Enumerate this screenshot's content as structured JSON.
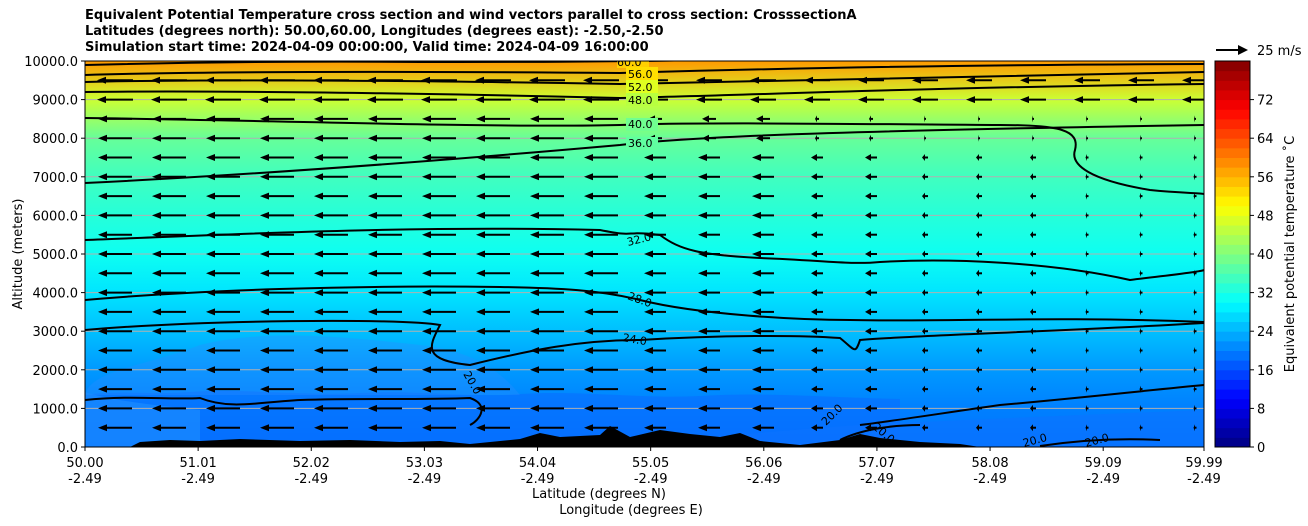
{
  "titles": {
    "line1": "Equivalent Potential Temperature cross section and wind vectors parallel to cross section: CrosssectionA",
    "line2": "Latitudes (degrees north): 50.00,60.00, Longitudes (degrees east): -2.50,-2.50",
    "line3": "Simulation start time: 2024-04-09 00:00:00, Valid time: 2024-04-09 16:00:00"
  },
  "chart_data": {
    "type": "heatmap",
    "ylabel": "Altitude (meters)",
    "xlabel_lat": "Latitude (degrees N)",
    "xlabel_lon": "Longitude (degrees E)",
    "ylim": [
      0,
      10000
    ],
    "yticks": [
      "0.0",
      "1000.0",
      "2000.0",
      "3000.0",
      "4000.0",
      "5000.0",
      "6000.0",
      "7000.0",
      "8000.0",
      "9000.0",
      "10000.0"
    ],
    "xticks_lat": [
      "50.00",
      "51.01",
      "52.02",
      "53.03",
      "54.04",
      "55.05",
      "56.06",
      "57.07",
      "58.08",
      "59.09",
      "59.99"
    ],
    "xticks_lon": [
      "-2.49",
      "-2.49",
      "-2.49",
      "-2.49",
      "-2.49",
      "-2.49",
      "-2.49",
      "-2.49",
      "-2.49",
      "-2.49",
      "-2.49"
    ],
    "colorbar": {
      "label": "Equivalent potential temperature ˚C",
      "range": [
        0,
        80
      ],
      "ticks": [
        "0",
        "8",
        "16",
        "24",
        "32",
        "40",
        "48",
        "56",
        "64",
        "72"
      ]
    },
    "quiver_key": "25 m/s",
    "contour_labels": [
      "60.0",
      "56.0",
      "52.0",
      "48.0",
      "40.0",
      "36.0",
      "32.0",
      "28.0",
      "24.0",
      "20.0",
      "20.0",
      "20.0",
      "20.0",
      "20.0"
    ],
    "theta_e_bands": [
      {
        "altitude": 0,
        "value": 19
      },
      {
        "altitude": 1000,
        "value": 20
      },
      {
        "altitude": 2000,
        "value": 22
      },
      {
        "altitude": 3000,
        "value": 25
      },
      {
        "altitude": 4000,
        "value": 28
      },
      {
        "altitude": 5000,
        "value": 31
      },
      {
        "altitude": 6000,
        "value": 33
      },
      {
        "altitude": 7000,
        "value": 35
      },
      {
        "altitude": 8000,
        "value": 38
      },
      {
        "altitude": 9000,
        "value": 46
      },
      {
        "altitude": 10000,
        "value": 58
      }
    ]
  }
}
